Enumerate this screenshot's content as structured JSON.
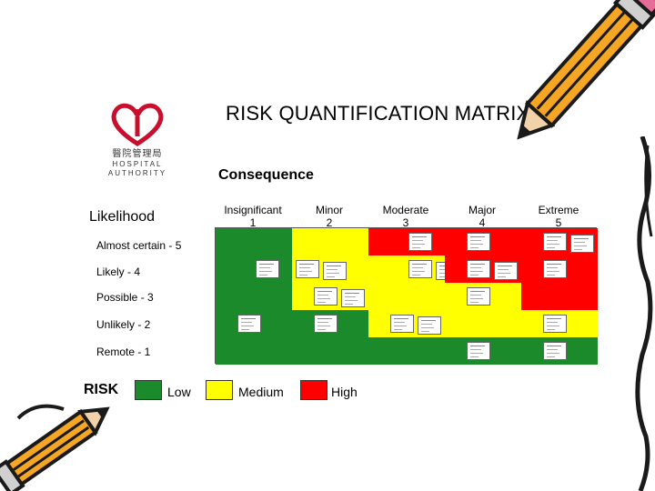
{
  "title": "RISK QUANTIFICATION MATRIX",
  "logo": {
    "chinese": "醫院管理局",
    "english_line1": "HOSPITAL",
    "english_line2": "AUTHORITY"
  },
  "axis": {
    "consequence": "Consequence",
    "likelihood": "Likelihood"
  },
  "columns": [
    {
      "name": "Insignificant",
      "num": "1"
    },
    {
      "name": "Minor",
      "num": "2"
    },
    {
      "name": "Moderate",
      "num": "3"
    },
    {
      "name": "Major",
      "num": "4"
    },
    {
      "name": "Extreme",
      "num": "5"
    }
  ],
  "rows": [
    "Almost certain - 5",
    "Likely - 4",
    "Possible - 3",
    "Unlikely - 2",
    "Remote - 1"
  ],
  "levels": [
    "Low",
    "Medium",
    "High"
  ],
  "colors": {
    "Low": "#1a8a2a",
    "Medium": "#ffff00",
    "High": "#ff0000",
    "pencil": "#f5a623",
    "pencil_dark": "#1a1a1a"
  },
  "matrix": [
    [
      "Low",
      "Medium",
      "High",
      "High",
      "High"
    ],
    [
      "Low",
      "Medium",
      "Medium",
      "High",
      "High"
    ],
    [
      "Low",
      "Medium",
      "Medium",
      "Medium",
      "High"
    ],
    [
      "Low",
      "Low",
      "Medium",
      "Medium",
      "Medium"
    ],
    [
      "Low",
      "Low",
      "Low",
      "Low",
      "Low"
    ]
  ],
  "documents": [
    [
      0,
      0,
      0
    ],
    [
      0,
      0,
      0
    ],
    [
      2,
      1,
      2
    ],
    [
      1,
      1,
      1
    ],
    [
      0,
      2,
      1
    ],
    [
      0,
      1,
      2
    ],
    [
      1,
      2,
      0
    ],
    [
      0,
      2,
      2
    ],
    [
      0,
      2,
      1
    ],
    [
      0,
      1,
      1
    ],
    [
      0,
      0,
      0
    ],
    [
      0,
      2,
      1
    ],
    [
      0,
      0,
      0
    ],
    [
      0,
      1,
      1
    ],
    [
      0,
      0,
      0
    ],
    [
      0,
      1,
      1
    ],
    [
      0,
      1,
      1
    ],
    [
      0,
      2,
      1
    ],
    [
      0,
      0,
      0
    ],
    [
      0,
      1,
      1
    ],
    [
      0,
      0,
      0
    ],
    [
      0,
      0,
      0
    ],
    [
      0,
      0,
      0
    ],
    [
      0,
      1,
      1
    ],
    [
      0,
      1,
      1
    ]
  ],
  "legend": {
    "risk": "RISK",
    "low": "Low",
    "medium": "Medium",
    "high": "High"
  }
}
